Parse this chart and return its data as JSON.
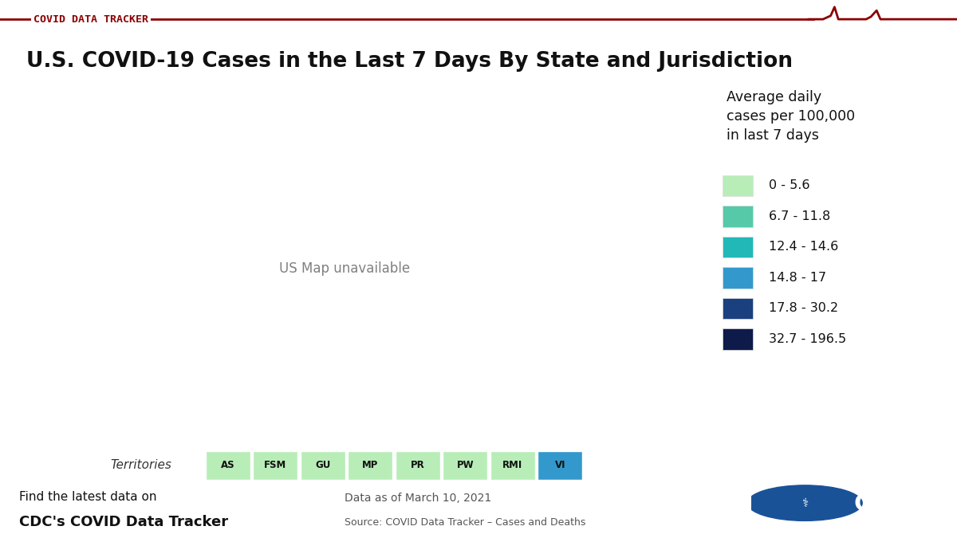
{
  "title": "U.S. COVID-19 Cases in the Last 7 Days By State and Jurisdiction",
  "header": "COVID DATA TRACKER",
  "legend_title": "Average daily\ncases per 100,000\nin last 7 days",
  "legend_entries": [
    {
      "label": "0 - 5.6",
      "color": "#b8edb8"
    },
    {
      "label": "6.7 - 11.8",
      "color": "#55c9a8"
    },
    {
      "label": "12.4 - 14.6",
      "color": "#22b8b8"
    },
    {
      "label": "14.8 - 17",
      "color": "#3399cc"
    },
    {
      "label": "17.8 - 30.2",
      "color": "#1a4080"
    },
    {
      "label": "32.7 - 196.5",
      "color": "#0d1a4a"
    }
  ],
  "territories": [
    "AS",
    "FSM",
    "GU",
    "MP",
    "PR",
    "PW",
    "RMI",
    "VI"
  ],
  "territory_colors": [
    "#b8edb8",
    "#b8edb8",
    "#b8edb8",
    "#b8edb8",
    "#b8edb8",
    "#b8edb8",
    "#b8edb8",
    "#3399cc"
  ],
  "footer_left_light": "Find the latest data on",
  "footer_left_bold": "CDC's COVID Data Tracker",
  "footer_right_line1": "Data as of March 10, 2021",
  "footer_right_line2": "Source: COVID Data Tracker – Cases and Deaths",
  "header_color": "#8b0000",
  "background_color": "#ffffff",
  "state_colors": {
    "Alabama": "#1a4080",
    "Alaska": "#3399cc",
    "Arizona": "#1a4080",
    "Arkansas": "#55c9a8",
    "California": "#55c9a8",
    "Colorado": "#1a4080",
    "Connecticut": "#1a4080",
    "Delaware": "#1a4080",
    "Florida": "#1a4080",
    "Georgia": "#1a4080",
    "Hawaii": "#b8edb8",
    "Idaho": "#55c9a8",
    "Illinois": "#3399cc",
    "Indiana": "#3399cc",
    "Iowa": "#55c9a8",
    "Kansas": "#55c9a8",
    "Kentucky": "#3399cc",
    "Louisiana": "#3399cc",
    "Maine": "#1a4080",
    "Maryland": "#1a4080",
    "Massachusetts": "#1a4080",
    "Michigan": "#3399cc",
    "Minnesota": "#55c9a8",
    "Mississippi": "#3399cc",
    "Missouri": "#0d1a4a",
    "Montana": "#55c9a8",
    "Nebraska": "#55c9a8",
    "Nevada": "#3399cc",
    "New Hampshire": "#1a4080",
    "New Jersey": "#1a4080",
    "New Mexico": "#3399cc",
    "New York": "#1a4080",
    "North Carolina": "#3399cc",
    "North Dakota": "#55c9a8",
    "Ohio": "#3399cc",
    "Oklahoma": "#3399cc",
    "Oregon": "#22b8b8",
    "Pennsylvania": "#3399cc",
    "Rhode Island": "#1a4080",
    "South Carolina": "#1a4080",
    "South Dakota": "#55c9a8",
    "Tennessee": "#3399cc",
    "Texas": "#3399cc",
    "Utah": "#55c9a8",
    "Vermont": "#b8edb8",
    "Virginia": "#3399cc",
    "Washington": "#22b8b8",
    "West Virginia": "#3399cc",
    "Wisconsin": "#3399cc",
    "Wyoming": "#55c9a8",
    "District of Columbia": "#1a4080"
  }
}
